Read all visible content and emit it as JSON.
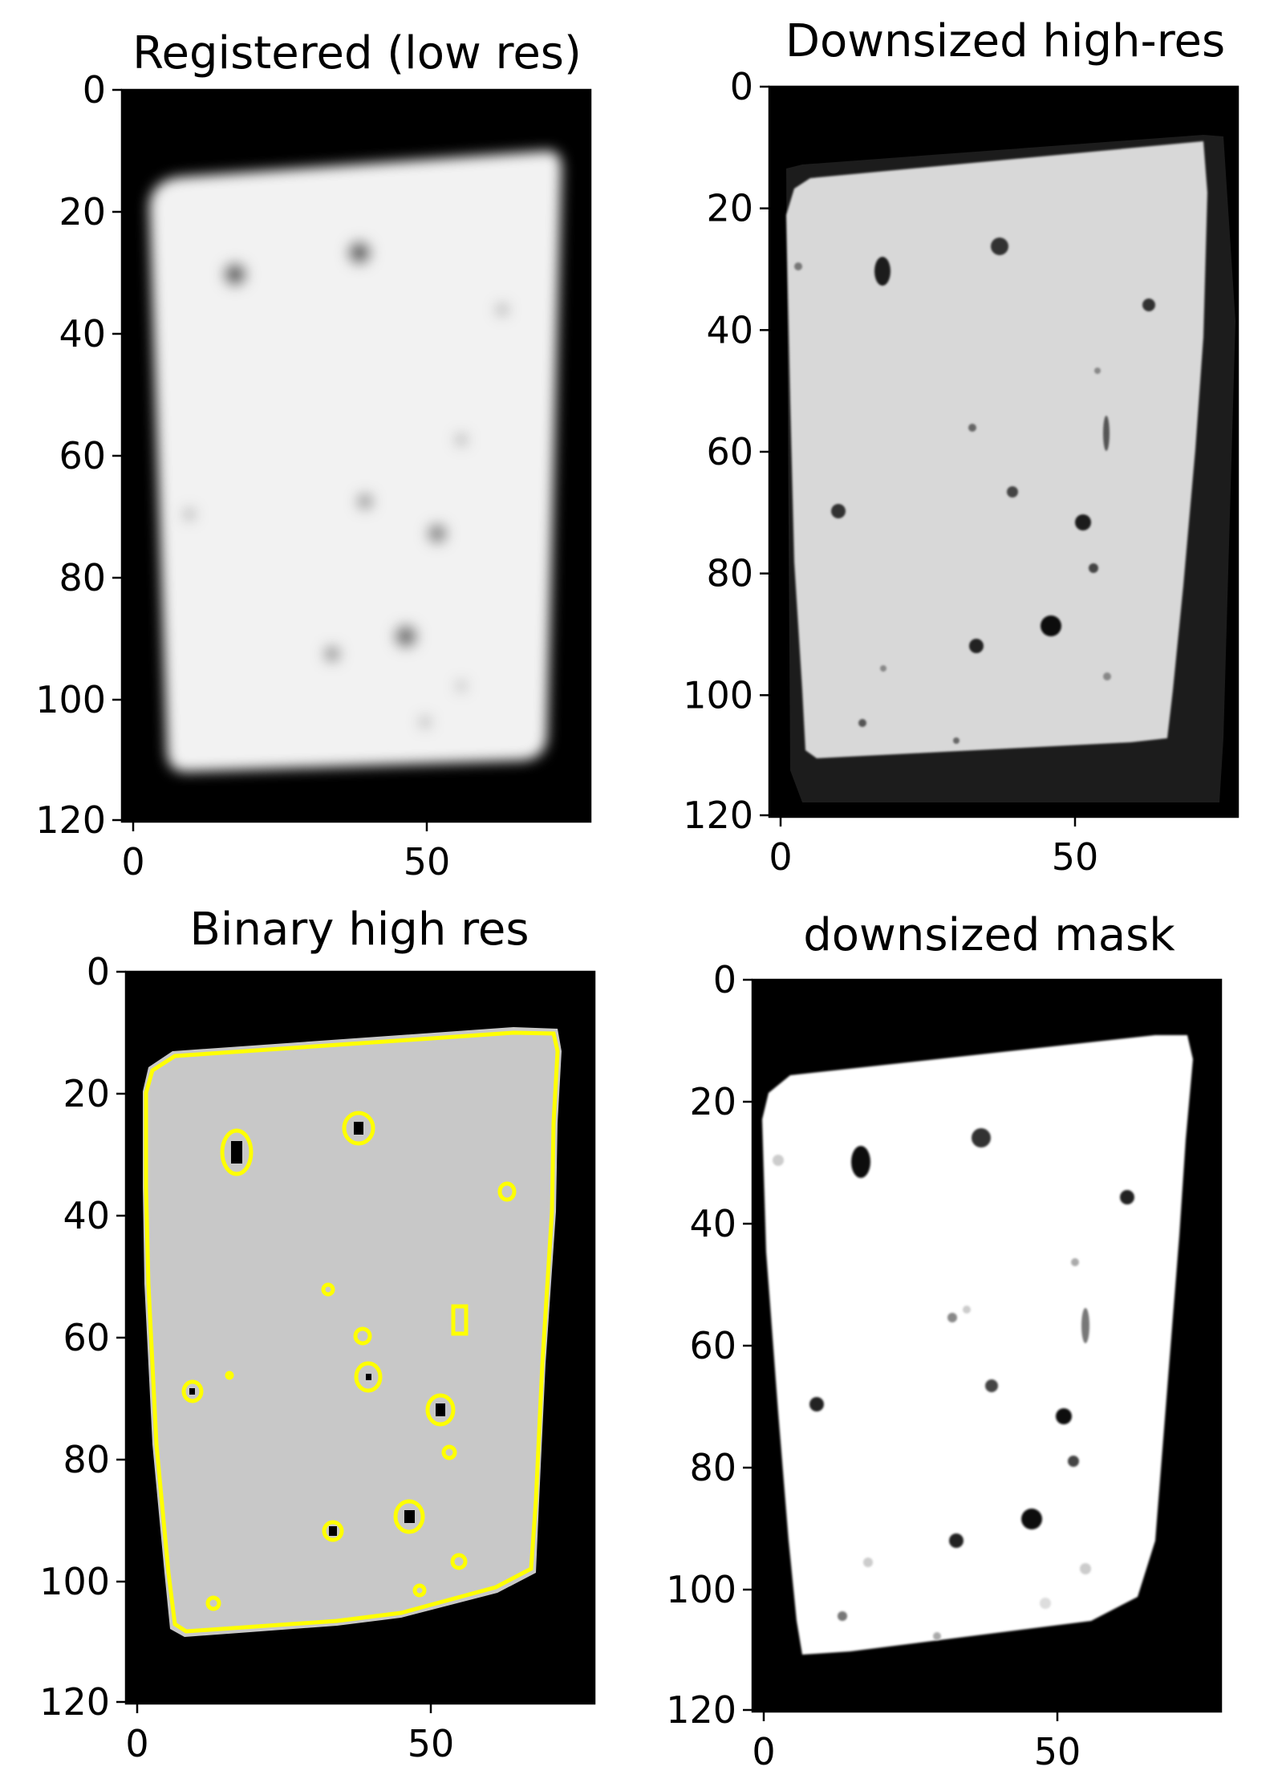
{
  "figure": {
    "panels": [
      {
        "title": "Registered (low res)",
        "xticks": [
          "0",
          "50"
        ],
        "yticks": [
          "0",
          "20",
          "40",
          "60",
          "80",
          "100",
          "120"
        ],
        "style": "blurred grayscale"
      },
      {
        "title": "Downsized high-res",
        "xticks": [
          "0",
          "50"
        ],
        "yticks": [
          "0",
          "20",
          "40",
          "60",
          "80",
          "100",
          "120"
        ],
        "style": "grayscale"
      },
      {
        "title": "Binary high res",
        "xticks": [
          "0",
          "50"
        ],
        "yticks": [
          "0",
          "20",
          "40",
          "60",
          "80",
          "100",
          "120"
        ],
        "style": "binary with yellow contours"
      },
      {
        "title": "downsized mask",
        "xticks": [
          "0",
          "50"
        ],
        "yticks": [
          "0",
          "20",
          "40",
          "60",
          "80",
          "100",
          "120"
        ],
        "style": "mask"
      }
    ],
    "colors": {
      "background": "#000000",
      "contour": "#ffff00",
      "binary_fill": "#c8c8c8",
      "mask_fill": "#ffffff",
      "highres_fill": "#d8d8d8",
      "lowres_fill": "#f2f2f2"
    }
  }
}
